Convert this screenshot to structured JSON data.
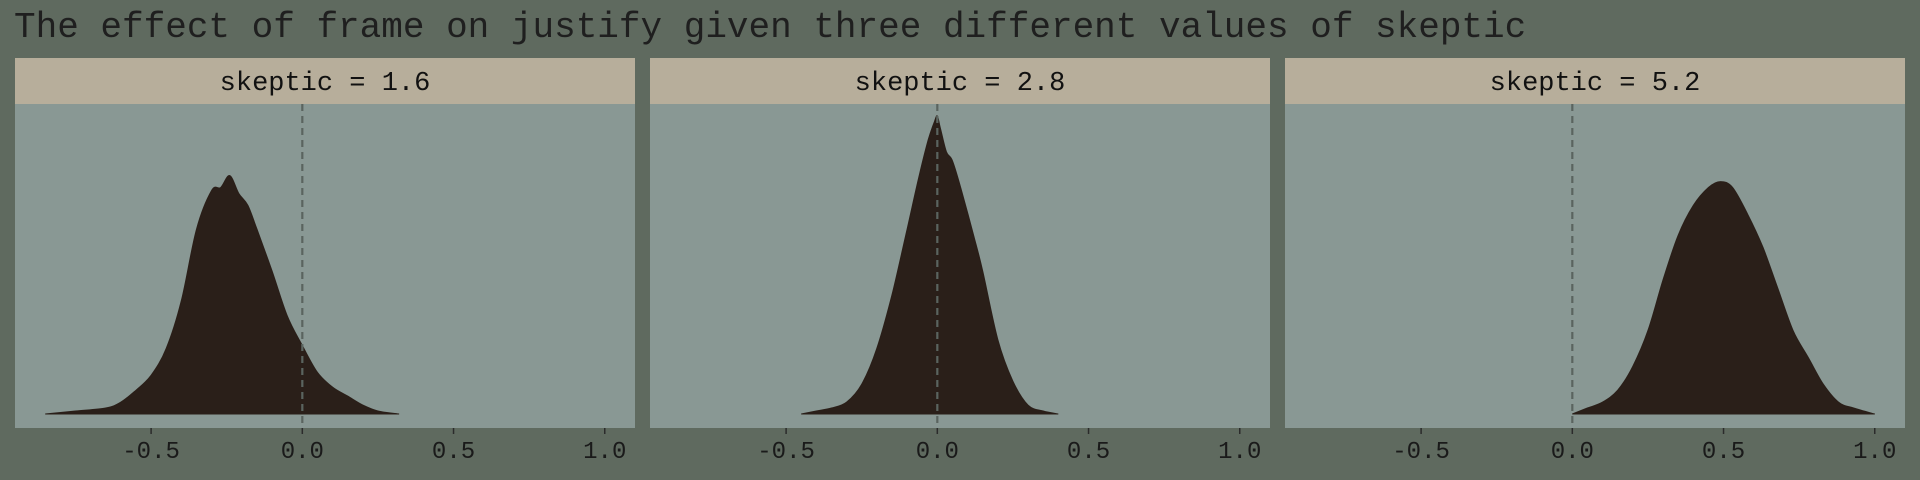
{
  "title": "The effect of frame on justify given three different values of skeptic",
  "colors": {
    "background": "#5f6a5f",
    "panel": "#899894",
    "strip": "#b7ae9b",
    "density_fill": "#2a1f19",
    "reference_line": "#5a645f"
  },
  "chart_data": {
    "type": "area",
    "subtype": "density",
    "title": "The effect of frame on justify given three different values of skeptic",
    "xlabel": "",
    "ylabel": "",
    "xlim": [
      -0.95,
      1.1
    ],
    "x_ticks": [
      -0.5,
      0.0,
      0.5,
      1.0
    ],
    "x_tick_labels": [
      "-0.5",
      "0.0",
      "0.5",
      "1.0"
    ],
    "reference_line_x": 0.0,
    "grid": false,
    "legend": "none",
    "facets": [
      {
        "label": "skeptic = 1.6",
        "x": [
          -0.85,
          -0.75,
          -0.65,
          -0.6,
          -0.55,
          -0.5,
          -0.45,
          -0.4,
          -0.35,
          -0.3,
          -0.27,
          -0.24,
          -0.21,
          -0.18,
          -0.15,
          -0.1,
          -0.05,
          0.0,
          0.05,
          0.1,
          0.15,
          0.2,
          0.25,
          0.32
        ],
        "y": [
          0.0,
          0.01,
          0.02,
          0.04,
          0.08,
          0.13,
          0.22,
          0.38,
          0.62,
          0.75,
          0.76,
          0.8,
          0.74,
          0.7,
          0.62,
          0.48,
          0.33,
          0.23,
          0.14,
          0.09,
          0.06,
          0.03,
          0.01,
          0.0
        ]
      },
      {
        "label": "skeptic = 2.8",
        "x": [
          -0.45,
          -0.4,
          -0.35,
          -0.3,
          -0.25,
          -0.2,
          -0.15,
          -0.1,
          -0.06,
          -0.03,
          -0.01,
          0.0,
          0.01,
          0.03,
          0.05,
          0.08,
          0.12,
          0.15,
          0.2,
          0.25,
          0.3,
          0.35,
          0.4
        ],
        "y": [
          0.0,
          0.01,
          0.02,
          0.04,
          0.1,
          0.22,
          0.4,
          0.62,
          0.8,
          0.92,
          0.98,
          1.0,
          0.96,
          0.88,
          0.85,
          0.75,
          0.6,
          0.48,
          0.25,
          0.11,
          0.03,
          0.01,
          0.0
        ]
      },
      {
        "label": "skeptic = 5.2",
        "x": [
          0.0,
          0.05,
          0.1,
          0.15,
          0.2,
          0.25,
          0.3,
          0.35,
          0.4,
          0.45,
          0.49,
          0.53,
          0.58,
          0.63,
          0.68,
          0.73,
          0.78,
          0.83,
          0.88,
          0.93,
          1.0
        ],
        "y": [
          0.0,
          0.02,
          0.04,
          0.08,
          0.16,
          0.28,
          0.45,
          0.6,
          0.7,
          0.76,
          0.78,
          0.76,
          0.67,
          0.56,
          0.42,
          0.28,
          0.19,
          0.1,
          0.04,
          0.02,
          0.0
        ]
      }
    ]
  }
}
